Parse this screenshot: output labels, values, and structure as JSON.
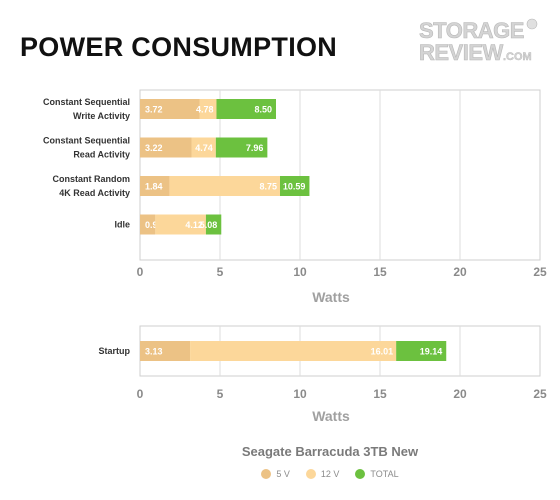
{
  "page": {
    "title": "POWER CONSUMPTION",
    "logo_text": "STORAGEREVIEW.COM"
  },
  "chart_data": [
    {
      "type": "bar",
      "stacked": true,
      "orientation": "horizontal",
      "categories": [
        [
          "Constant Sequential",
          "Write Activity"
        ],
        [
          "Constant Sequential",
          "Read Activity"
        ],
        [
          "Constant Random",
          "4K Read Activity"
        ],
        [
          "Idle"
        ]
      ],
      "series": [
        {
          "name": "5 V",
          "color": "#ecc285",
          "values": [
            3.72,
            3.22,
            1.84,
            0.96
          ]
        },
        {
          "name": "12 V",
          "color": "#fcd79a",
          "values": [
            4.78,
            4.74,
            8.75,
            4.12
          ]
        },
        {
          "name": "TOTAL",
          "color": "#6cc13f",
          "values": [
            8.5,
            7.96,
            10.59,
            5.08
          ]
        }
      ],
      "xlabel": "Watts",
      "xlim": [
        0,
        25
      ],
      "xticks": [
        0,
        5,
        10,
        15,
        20,
        25
      ],
      "grid": true
    },
    {
      "type": "bar",
      "stacked": true,
      "orientation": "horizontal",
      "categories": [
        [
          "Startup"
        ]
      ],
      "series": [
        {
          "name": "5 V",
          "color": "#ecc285",
          "values": [
            3.13
          ]
        },
        {
          "name": "12 V",
          "color": "#fcd79a",
          "values": [
            16.01
          ]
        },
        {
          "name": "TOTAL",
          "color": "#6cc13f",
          "values": [
            19.14
          ]
        }
      ],
      "xlabel": "Watts",
      "xlim": [
        0,
        25
      ],
      "xticks": [
        0,
        5,
        10,
        15,
        20,
        25
      ],
      "grid": true
    }
  ],
  "legend": {
    "title": "Seagate Barracuda 3TB New",
    "items": [
      {
        "label": "5 V",
        "color": "#ecc285"
      },
      {
        "label": "12 V",
        "color": "#fcd79a"
      },
      {
        "label": "TOTAL",
        "color": "#6cc13f"
      }
    ]
  }
}
